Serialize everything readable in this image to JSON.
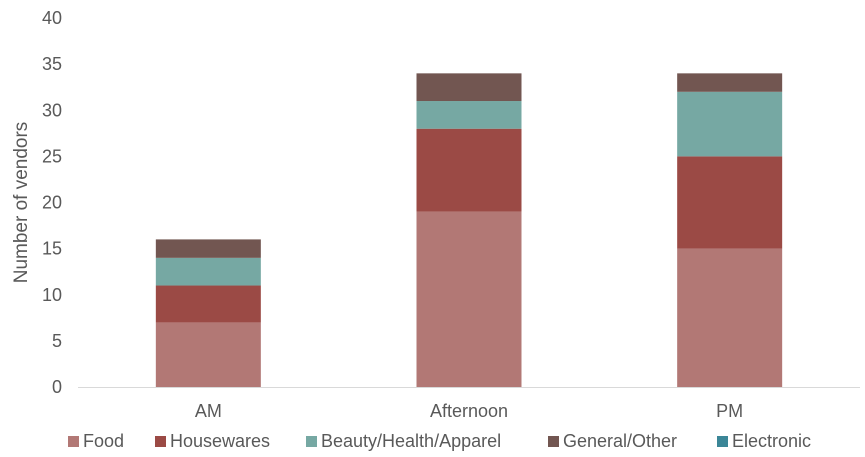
{
  "chart_data": {
    "type": "bar",
    "stacked": true,
    "categories": [
      "AM",
      "Afternoon",
      "PM"
    ],
    "series": [
      {
        "name": "Food",
        "color": "#b27875",
        "values": [
          7,
          19,
          15
        ]
      },
      {
        "name": "Housewares",
        "color": "#9b4a45",
        "values": [
          4,
          9,
          10
        ]
      },
      {
        "name": "Beauty/Health/Apparel",
        "color": "#76a8a3",
        "values": [
          3,
          3,
          7
        ]
      },
      {
        "name": "General/Other",
        "color": "#725651",
        "values": [
          2,
          3,
          2
        ]
      },
      {
        "name": "Electronic",
        "color": "#3b8697",
        "values": [
          0,
          0,
          0
        ]
      }
    ],
    "xlabel": "",
    "ylabel": "Number of vendors",
    "ylim": [
      0,
      40
    ],
    "yticks": [
      0,
      5,
      10,
      15,
      20,
      25,
      30,
      35,
      40
    ],
    "grid": false,
    "legend": "bottom"
  }
}
